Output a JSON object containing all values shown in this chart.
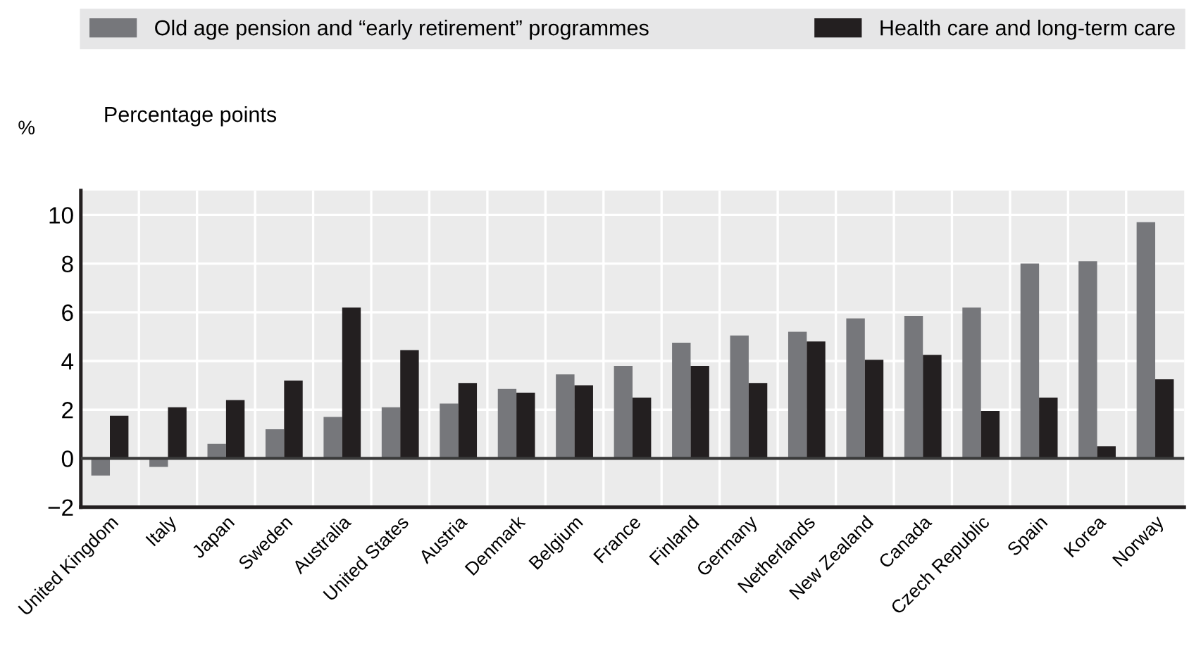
{
  "chart_data": {
    "type": "bar",
    "categories": [
      "United Kingdom",
      "Italy",
      "Japan",
      "Sweden",
      "Australia",
      "United States",
      "Austria",
      "Denmark",
      "Belgium",
      "France",
      "Finland",
      "Germany",
      "Netherlands",
      "New Zealand",
      "Canada",
      "Czech Republic",
      "Spain",
      "Korea",
      "Norway"
    ],
    "series": [
      {
        "name": "Old age pension and “early retirement” programmes",
        "color": "#76777b",
        "values": [
          -0.7,
          -0.35,
          0.6,
          1.2,
          1.7,
          2.1,
          2.25,
          2.85,
          3.45,
          3.8,
          4.75,
          5.05,
          5.2,
          5.75,
          5.85,
          6.2,
          8.0,
          8.1,
          9.7
        ]
      },
      {
        "name": "Health care and long-term care",
        "color": "#231f20",
        "values": [
          1.75,
          2.1,
          2.4,
          3.2,
          6.2,
          4.45,
          3.1,
          2.7,
          3.0,
          2.5,
          3.8,
          3.1,
          4.8,
          4.05,
          4.25,
          1.95,
          2.5,
          0.5,
          3.25
        ]
      }
    ],
    "annotations": [
      "%",
      "Percentage points"
    ],
    "ylim": [
      -2,
      11
    ],
    "yticks": [
      {
        "value": -2,
        "label": "−2"
      },
      0,
      2,
      4,
      6,
      8,
      10
    ],
    "ref_lines": [
      {
        "axis": "y",
        "value": 0,
        "color": "#3a3a3a"
      }
    ],
    "grid": true,
    "legend": "top"
  }
}
